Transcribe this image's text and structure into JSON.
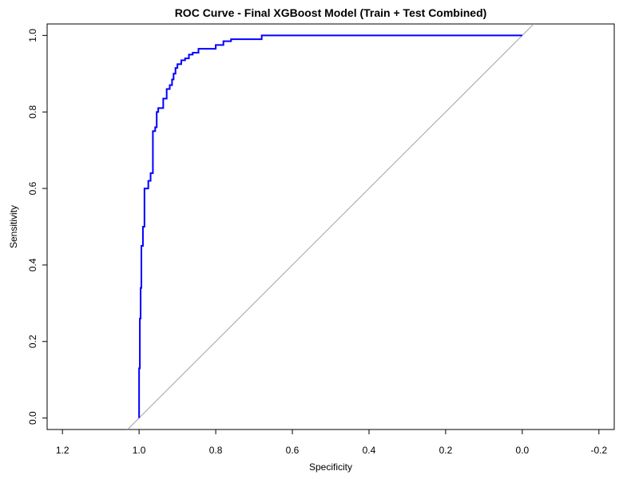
{
  "chart_data": {
    "type": "line",
    "title": "ROC Curve - Final XGBoost Model (Train + Test Combined)",
    "xlabel": "Specificity",
    "ylabel": "Sensitivity",
    "xlim": [
      1.24,
      -0.24
    ],
    "ylim": [
      -0.03,
      1.03
    ],
    "x_reversed": true,
    "x_ticks": [
      1.2,
      1.0,
      0.8,
      0.6,
      0.4,
      0.2,
      0.0,
      -0.2
    ],
    "x_tick_labels": [
      "1.2",
      "1.0",
      "0.8",
      "0.6",
      "0.4",
      "0.2",
      "0.0",
      "-0.2"
    ],
    "y_ticks": [
      0.0,
      0.2,
      0.4,
      0.6,
      0.8,
      1.0
    ],
    "y_tick_labels": [
      "0.0",
      "0.2",
      "0.4",
      "0.6",
      "0.8",
      "1.0"
    ],
    "grid": false,
    "legend": "none",
    "reference_line": {
      "from": [
        1.0,
        0.0
      ],
      "to": [
        0.0,
        1.0
      ],
      "color": "#a0a0a0"
    },
    "series": [
      {
        "color": "#0000ff",
        "points": [
          [
            1.0,
            0.0
          ],
          [
            1.0,
            0.13
          ],
          [
            0.998,
            0.13
          ],
          [
            0.998,
            0.26
          ],
          [
            0.996,
            0.26
          ],
          [
            0.996,
            0.34
          ],
          [
            0.994,
            0.34
          ],
          [
            0.994,
            0.45
          ],
          [
            0.99,
            0.45
          ],
          [
            0.99,
            0.5
          ],
          [
            0.986,
            0.5
          ],
          [
            0.986,
            0.6
          ],
          [
            0.976,
            0.6
          ],
          [
            0.976,
            0.62
          ],
          [
            0.97,
            0.62
          ],
          [
            0.97,
            0.64
          ],
          [
            0.964,
            0.64
          ],
          [
            0.964,
            0.75
          ],
          [
            0.958,
            0.75
          ],
          [
            0.958,
            0.76
          ],
          [
            0.954,
            0.76
          ],
          [
            0.954,
            0.8
          ],
          [
            0.95,
            0.8
          ],
          [
            0.95,
            0.81
          ],
          [
            0.937,
            0.81
          ],
          [
            0.937,
            0.835
          ],
          [
            0.928,
            0.835
          ],
          [
            0.928,
            0.86
          ],
          [
            0.92,
            0.86
          ],
          [
            0.92,
            0.87
          ],
          [
            0.914,
            0.87
          ],
          [
            0.914,
            0.885
          ],
          [
            0.91,
            0.885
          ],
          [
            0.91,
            0.9
          ],
          [
            0.905,
            0.9
          ],
          [
            0.905,
            0.915
          ],
          [
            0.9,
            0.915
          ],
          [
            0.9,
            0.925
          ],
          [
            0.89,
            0.925
          ],
          [
            0.89,
            0.935
          ],
          [
            0.88,
            0.935
          ],
          [
            0.88,
            0.94
          ],
          [
            0.87,
            0.94
          ],
          [
            0.87,
            0.95
          ],
          [
            0.86,
            0.95
          ],
          [
            0.86,
            0.955
          ],
          [
            0.845,
            0.955
          ],
          [
            0.845,
            0.965
          ],
          [
            0.8,
            0.965
          ],
          [
            0.8,
            0.975
          ],
          [
            0.78,
            0.975
          ],
          [
            0.78,
            0.985
          ],
          [
            0.76,
            0.985
          ],
          [
            0.76,
            0.99
          ],
          [
            0.68,
            0.99
          ],
          [
            0.68,
            1.0
          ],
          [
            0.0,
            1.0
          ]
        ]
      }
    ]
  }
}
